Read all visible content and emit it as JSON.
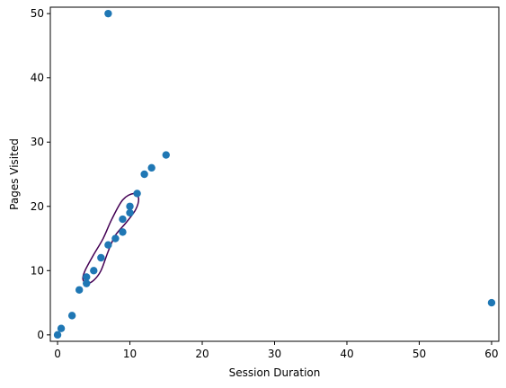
{
  "chart_data": {
    "type": "scatter",
    "title": "",
    "xlabel": "Session Duration",
    "ylabel": "Pages Visited",
    "xlim": [
      -1,
      61
    ],
    "ylim": [
      -1,
      51
    ],
    "xticks": [
      0,
      10,
      20,
      30,
      40,
      50,
      60
    ],
    "yticks": [
      0,
      10,
      20,
      30,
      40,
      50
    ],
    "grid": false,
    "point_color": "#1f77b4",
    "contour_color": "#440154",
    "points": [
      {
        "x": 0,
        "y": 0
      },
      {
        "x": 0.5,
        "y": 1
      },
      {
        "x": 2,
        "y": 3
      },
      {
        "x": 3,
        "y": 7
      },
      {
        "x": 4,
        "y": 8
      },
      {
        "x": 4,
        "y": 9
      },
      {
        "x": 5,
        "y": 10
      },
      {
        "x": 6,
        "y": 12
      },
      {
        "x": 7,
        "y": 14
      },
      {
        "x": 8,
        "y": 15
      },
      {
        "x": 9,
        "y": 16
      },
      {
        "x": 9,
        "y": 18
      },
      {
        "x": 10,
        "y": 19
      },
      {
        "x": 10,
        "y": 20
      },
      {
        "x": 11,
        "y": 22
      },
      {
        "x": 12,
        "y": 25
      },
      {
        "x": 13,
        "y": 26
      },
      {
        "x": 15,
        "y": 28
      },
      {
        "x": 7,
        "y": 50
      },
      {
        "x": 60,
        "y": 5
      }
    ],
    "contour": [
      {
        "x": 4.0,
        "y": 8.0
      },
      {
        "x": 5.0,
        "y": 8.5
      },
      {
        "x": 6.0,
        "y": 10.0
      },
      {
        "x": 7.0,
        "y": 13.0
      },
      {
        "x": 8.0,
        "y": 15.5
      },
      {
        "x": 9.5,
        "y": 17.5
      },
      {
        "x": 10.8,
        "y": 19.5
      },
      {
        "x": 11.2,
        "y": 21.3
      },
      {
        "x": 10.5,
        "y": 22.0
      },
      {
        "x": 9.0,
        "y": 21.0
      },
      {
        "x": 7.5,
        "y": 18.0
      },
      {
        "x": 6.3,
        "y": 15.0
      },
      {
        "x": 5.0,
        "y": 12.5
      },
      {
        "x": 3.8,
        "y": 10.0
      },
      {
        "x": 3.5,
        "y": 8.7
      }
    ]
  }
}
